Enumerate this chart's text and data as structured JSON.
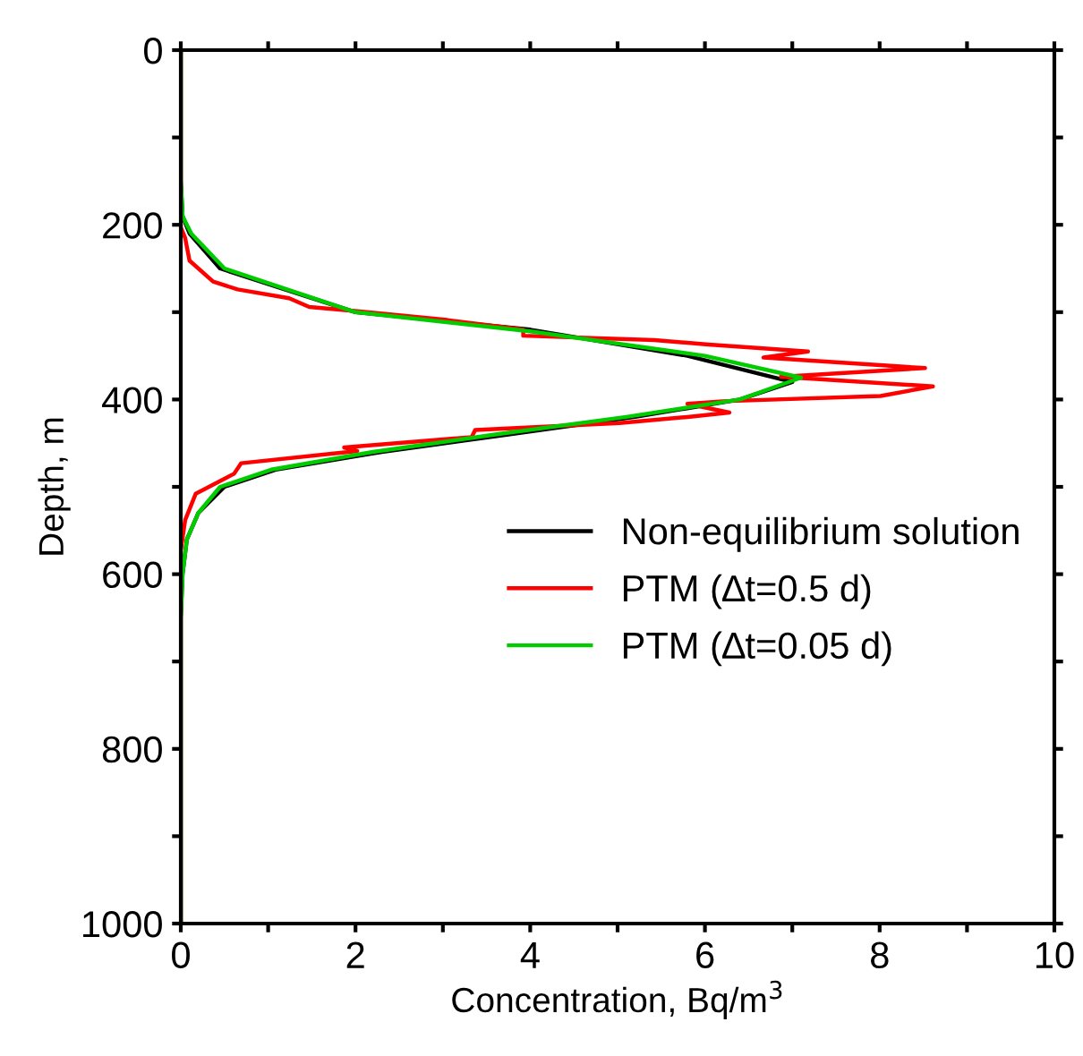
{
  "chart_data": {
    "type": "line",
    "xlabel": "Concentration, Bq/m$^{3}$",
    "ylabel": "Depth, m",
    "xlim": [
      0,
      10
    ],
    "ylim": [
      1000,
      0
    ],
    "xticks": [
      0,
      {
        "value": 1,
        "label": null
      },
      2,
      {
        "value": 3,
        "label": null
      },
      4,
      {
        "value": 5,
        "label": null
      },
      6,
      {
        "value": 7,
        "label": null
      },
      8,
      {
        "value": 9,
        "label": null
      },
      10
    ],
    "yticks": [
      0,
      {
        "value": 100,
        "label": null
      },
      200,
      {
        "value": 300,
        "label": null
      },
      400,
      {
        "value": 500,
        "label": null
      },
      600,
      {
        "value": 700,
        "label": null
      },
      800,
      {
        "value": 900,
        "label": null
      },
      1000
    ],
    "grid": false,
    "legend": "right",
    "line_style": "solid",
    "marker": "none",
    "series": [
      {
        "name": "Non-equilibrium solution",
        "color": "#000000",
        "x": [
          0,
          0,
          0.02,
          0.1,
          0.45,
          2.0,
          4.0,
          5.8,
          7.0,
          6.4,
          5.2,
          3.75,
          2.3,
          1.1,
          0.5,
          0.2,
          0.07,
          0.02,
          0,
          0
        ],
        "values": [
          0,
          150,
          190,
          210,
          250,
          300,
          320,
          350,
          380,
          400,
          420,
          440,
          460,
          480,
          500,
          530,
          560,
          600,
          650,
          1000
        ]
      },
      {
        "name": "PTM (∆t=0.5 d)",
        "color": "#ff0000",
        "x": [
          0,
          0,
          0.05,
          0.1,
          0.37,
          0.65,
          1.24,
          1.47,
          2.02,
          3.05,
          3.92,
          3.92,
          5.42,
          6.04,
          7.18,
          6.67,
          8.52,
          6.87,
          8.61,
          8.01,
          6.2,
          5.8,
          6.28,
          5.8,
          5.02,
          3.37,
          3.33,
          1.87,
          2.02,
          0.69,
          0.61,
          0.17,
          0.13,
          0.05,
          0,
          0
        ],
        "values": [
          0,
          203,
          215,
          241,
          265,
          274,
          284,
          294,
          299,
          309,
          320,
          327,
          332,
          337,
          345,
          352,
          364,
          374,
          385,
          396,
          402,
          405,
          415,
          420,
          427,
          435,
          443,
          455,
          459,
          473,
          485,
          508,
          518,
          538,
          573,
          1000
        ]
      },
      {
        "name": "PTM (∆t=0.05 d)",
        "color": "#00cc00",
        "x": [
          0,
          0,
          0.02,
          0.12,
          0.5,
          2.0,
          4.0,
          6.0,
          7.1,
          6.4,
          5.1,
          3.6,
          2.2,
          1.05,
          0.45,
          0.2,
          0.07,
          0.02,
          0,
          0
        ],
        "values": [
          0,
          150,
          190,
          210,
          250,
          300,
          322,
          350,
          375,
          400,
          420,
          440,
          460,
          480,
          500,
          530,
          560,
          600,
          650,
          1000
        ]
      }
    ]
  }
}
